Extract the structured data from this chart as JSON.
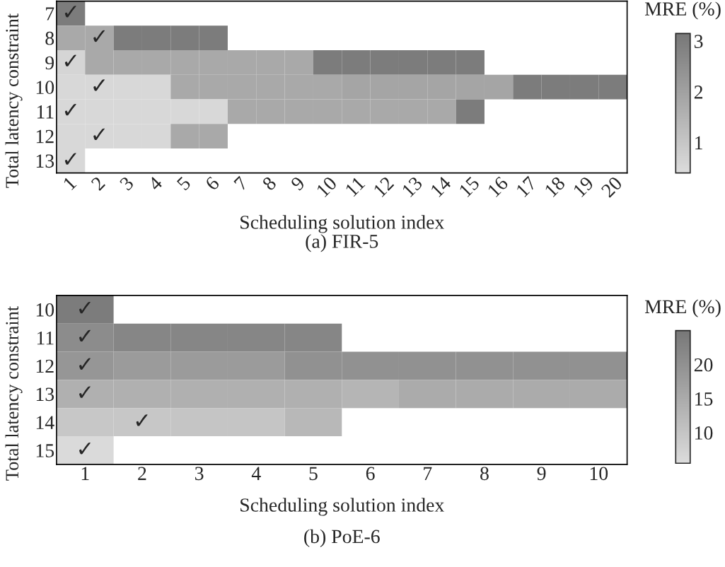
{
  "chart_data": [
    {
      "type": "heatmap",
      "title": "(a) FIR-5",
      "xlabel": "Scheduling solution index",
      "ylabel": "Total latency constraint",
      "clabel": "MRE (%)",
      "categories": [
        "1",
        "2",
        "3",
        "4",
        "5",
        "6",
        "7",
        "8",
        "9",
        "10",
        "11",
        "12",
        "13",
        "14",
        "15",
        "16",
        "17",
        "18",
        "19",
        "20"
      ],
      "y_categories": [
        "7",
        "8",
        "9",
        "10",
        "11",
        "12",
        "13"
      ],
      "cells": [
        [
          3.0,
          null,
          null,
          null,
          null,
          null,
          null,
          null,
          null,
          null,
          null,
          null,
          null,
          null,
          null,
          null,
          null,
          null,
          null,
          null
        ],
        [
          1.8,
          1.8,
          3.0,
          3.0,
          3.0,
          3.0,
          null,
          null,
          null,
          null,
          null,
          null,
          null,
          null,
          null,
          null,
          null,
          null,
          null,
          null
        ],
        [
          0.6,
          1.8,
          1.8,
          1.8,
          1.8,
          1.8,
          1.8,
          1.8,
          1.8,
          3.0,
          3.0,
          3.0,
          3.0,
          3.0,
          3.0,
          null,
          null,
          null,
          null,
          null
        ],
        [
          0.5,
          0.5,
          0.5,
          0.5,
          1.8,
          1.8,
          1.8,
          1.8,
          1.8,
          1.8,
          1.9,
          1.9,
          1.9,
          1.9,
          1.9,
          1.9,
          3.0,
          3.0,
          3.0,
          3.0
        ],
        [
          0.5,
          0.5,
          0.5,
          0.5,
          0.5,
          0.5,
          1.8,
          1.8,
          1.8,
          1.8,
          1.8,
          1.8,
          1.8,
          1.8,
          3.0,
          null,
          null,
          null,
          null,
          null
        ],
        [
          0.5,
          0.5,
          0.5,
          0.5,
          1.8,
          1.8,
          null,
          null,
          null,
          null,
          null,
          null,
          null,
          null,
          null,
          null,
          null,
          null,
          null,
          null
        ],
        [
          0.5,
          null,
          null,
          null,
          null,
          null,
          null,
          null,
          null,
          null,
          null,
          null,
          null,
          null,
          null,
          null,
          null,
          null,
          null,
          null
        ]
      ],
      "clim": [
        0.4,
        3.15
      ],
      "cticks": [
        1,
        2,
        3
      ],
      "grid": false,
      "cell_labels": [
        [
          "✓",
          null,
          null,
          null,
          null,
          null,
          null,
          null,
          null,
          null,
          null,
          null,
          null,
          null,
          null,
          null,
          null,
          null,
          null,
          null
        ],
        [
          null,
          "✓",
          null,
          null,
          null,
          null,
          null,
          null,
          null,
          null,
          null,
          null,
          null,
          null,
          null,
          null,
          null,
          null,
          null,
          null
        ],
        [
          "✓",
          null,
          null,
          null,
          null,
          null,
          null,
          null,
          null,
          null,
          null,
          null,
          null,
          null,
          null,
          null,
          null,
          null,
          null,
          null
        ],
        [
          null,
          "✓",
          null,
          null,
          null,
          null,
          null,
          null,
          null,
          null,
          null,
          null,
          null,
          null,
          null,
          null,
          null,
          null,
          null,
          null
        ],
        [
          "✓",
          null,
          null,
          null,
          null,
          null,
          null,
          null,
          null,
          null,
          null,
          null,
          null,
          null,
          null,
          null,
          null,
          null,
          null,
          null
        ],
        [
          null,
          "✓",
          null,
          null,
          null,
          null,
          null,
          null,
          null,
          null,
          null,
          null,
          null,
          null,
          null,
          null,
          null,
          null,
          null,
          null
        ],
        [
          "✓",
          null,
          null,
          null,
          null,
          null,
          null,
          null,
          null,
          null,
          null,
          null,
          null,
          null,
          null,
          null,
          null,
          null,
          null,
          null
        ]
      ]
    },
    {
      "type": "heatmap",
      "title": "(b) PoE-6",
      "xlabel": "Scheduling solution index",
      "ylabel": "Total latency constraint",
      "clabel": "MRE (%)",
      "categories": [
        "1",
        "2",
        "3",
        "4",
        "5",
        "6",
        "7",
        "8",
        "9",
        "10"
      ],
      "y_categories": [
        "10",
        "11",
        "12",
        "13",
        "14",
        "15"
      ],
      "cells": [
        [
          24,
          null,
          null,
          null,
          null,
          null,
          null,
          null,
          null,
          null
        ],
        [
          21,
          22,
          22,
          22,
          22,
          null,
          null,
          null,
          null,
          null
        ],
        [
          19,
          18,
          18,
          18,
          20,
          20,
          20,
          20,
          20,
          20
        ],
        [
          14,
          14,
          14,
          14,
          14,
          13,
          15,
          15,
          15,
          15
        ],
        [
          9.5,
          9.5,
          10,
          10,
          12.5,
          null,
          null,
          null,
          null,
          null
        ],
        [
          6,
          null,
          null,
          null,
          null,
          null,
          null,
          null,
          null,
          null
        ]
      ],
      "clim": [
        5.5,
        25
      ],
      "cticks": [
        10,
        15,
        20
      ],
      "grid": false,
      "cell_labels": [
        [
          "✓",
          null,
          null,
          null,
          null,
          null,
          null,
          null,
          null,
          null
        ],
        [
          "✓",
          null,
          null,
          null,
          null,
          null,
          null,
          null,
          null,
          null
        ],
        [
          "✓",
          null,
          null,
          null,
          null,
          null,
          null,
          null,
          null,
          null
        ],
        [
          "✓",
          null,
          null,
          null,
          null,
          null,
          null,
          null,
          null,
          null
        ],
        [
          null,
          "✓",
          null,
          null,
          null,
          null,
          null,
          null,
          null,
          null
        ],
        [
          "✓",
          null,
          null,
          null,
          null,
          null,
          null,
          null,
          null,
          null
        ]
      ]
    }
  ]
}
